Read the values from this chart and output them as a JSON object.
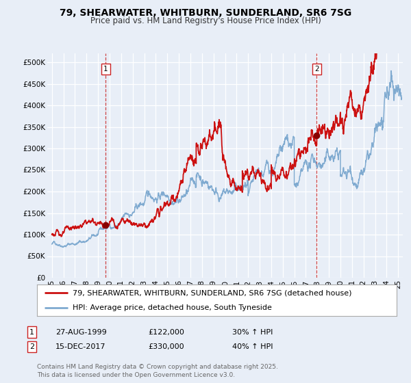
{
  "title": "79, SHEARWATER, WHITBURN, SUNDERLAND, SR6 7SG",
  "subtitle": "Price paid vs. HM Land Registry's House Price Index (HPI)",
  "ylim": [
    0,
    520000
  ],
  "yticks": [
    0,
    50000,
    100000,
    150000,
    200000,
    250000,
    300000,
    350000,
    400000,
    450000,
    500000
  ],
  "ytick_labels": [
    "£0",
    "£50K",
    "£100K",
    "£150K",
    "£200K",
    "£250K",
    "£300K",
    "£350K",
    "£400K",
    "£450K",
    "£500K"
  ],
  "xlim_start": 1994.6,
  "xlim_end": 2025.4,
  "xticks": [
    1995,
    1996,
    1997,
    1998,
    1999,
    2000,
    2001,
    2002,
    2003,
    2004,
    2005,
    2006,
    2007,
    2008,
    2009,
    2010,
    2011,
    2012,
    2013,
    2014,
    2015,
    2016,
    2017,
    2018,
    2019,
    2020,
    2021,
    2022,
    2023,
    2024,
    2025
  ],
  "xtick_labels": [
    "95",
    "96",
    "97",
    "98",
    "99",
    "00",
    "01",
    "02",
    "03",
    "04",
    "05",
    "06",
    "07",
    "08",
    "09",
    "10",
    "11",
    "12",
    "13",
    "14",
    "15",
    "16",
    "17",
    "18",
    "19",
    "20",
    "21",
    "22",
    "23",
    "24",
    "25"
  ],
  "background_color": "#e8eef7",
  "plot_bg_color": "#e8eef7",
  "grid_color": "#ffffff",
  "line1_color": "#cc1111",
  "line2_color": "#7faad0",
  "marker_color": "#880000",
  "vline_color": "#cc3333",
  "marker1_x": 1999.65,
  "marker1_y": 122000,
  "marker2_x": 2017.95,
  "marker2_y": 330000,
  "legend_line1": "79, SHEARWATER, WHITBURN, SUNDERLAND, SR6 7SG (detached house)",
  "legend_line2": "HPI: Average price, detached house, South Tyneside",
  "table_row1_num": "1",
  "table_row1_date": "27-AUG-1999",
  "table_row1_price": "£122,000",
  "table_row1_hpi": "30% ↑ HPI",
  "table_row2_num": "2",
  "table_row2_date": "15-DEC-2017",
  "table_row2_price": "£330,000",
  "table_row2_hpi": "40% ↑ HPI",
  "footnote": "Contains HM Land Registry data © Crown copyright and database right 2025.\nThis data is licensed under the Open Government Licence v3.0.",
  "title_fontsize": 10,
  "subtitle_fontsize": 8.5,
  "tick_fontsize": 7.5,
  "legend_fontsize": 8,
  "table_fontsize": 8,
  "footnote_fontsize": 6.5
}
